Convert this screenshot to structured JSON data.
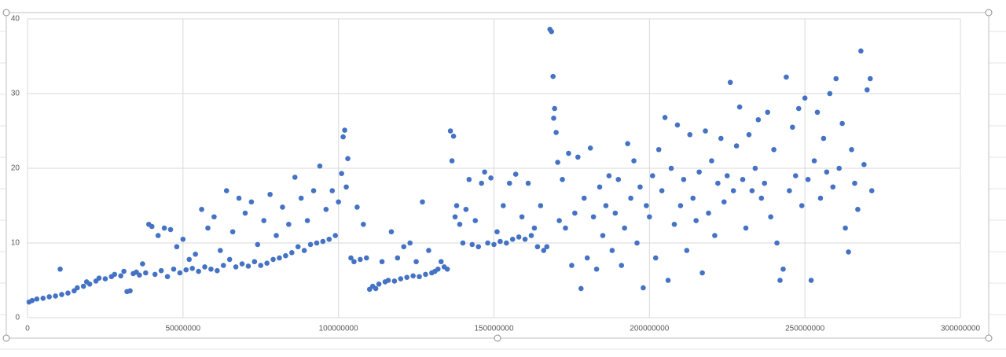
{
  "chart_data": {
    "type": "scatter",
    "color": "#4472c4",
    "grid": true,
    "xlim": [
      0,
      300000000
    ],
    "xticks": [
      0,
      50000000,
      100000000,
      150000000,
      200000000,
      250000000,
      300000000
    ],
    "ylim": [
      0,
      40
    ],
    "yticks": [
      0,
      10,
      20,
      30,
      40
    ],
    "x": [
      500000,
      1500000,
      3000000,
      5000000,
      7000000,
      9000000,
      10500000,
      11000000,
      13000000,
      15000000,
      16000000,
      18000000,
      19000000,
      20000000,
      22000000,
      23000000,
      25000000,
      27000000,
      28000000,
      30000000,
      31000000,
      32000000,
      33000000,
      34000000,
      35000000,
      36000000,
      37000000,
      38000000,
      39000000,
      40000000,
      41000000,
      42000000,
      43000000,
      44000000,
      45000000,
      46000000,
      47000000,
      48000000,
      49000000,
      50000000,
      51000000,
      52000000,
      53000000,
      54000000,
      55000000,
      56000000,
      57000000,
      58000000,
      59000000,
      60000000,
      61000000,
      62000000,
      63000000,
      64000000,
      65000000,
      66000000,
      67000000,
      68000000,
      69000000,
      70000000,
      71000000,
      72000000,
      73000000,
      74000000,
      75000000,
      76000000,
      77000000,
      78000000,
      79000000,
      80000000,
      81000000,
      82000000,
      83000000,
      84000000,
      85000000,
      86000000,
      87000000,
      88000000,
      89000000,
      90000000,
      91000000,
      92000000,
      93000000,
      94000000,
      95000000,
      96000000,
      97000000,
      98000000,
      99000000,
      100000000,
      101000000,
      101500000,
      102000000,
      102500000,
      103000000,
      104000000,
      105000000,
      106000000,
      107000000,
      108000000,
      109000000,
      110000000,
      111000000,
      112000000,
      113000000,
      114000000,
      115000000,
      116000000,
      117000000,
      118000000,
      119000000,
      120000000,
      121000000,
      122000000,
      123000000,
      124000000,
      125000000,
      126000000,
      127000000,
      128000000,
      129000000,
      130000000,
      131000000,
      132000000,
      133000000,
      134000000,
      135000000,
      136000000,
      136500000,
      137000000,
      137500000,
      138000000,
      139000000,
      140000000,
      141000000,
      142000000,
      143000000,
      144000000,
      145000000,
      146000000,
      147000000,
      148000000,
      149000000,
      150000000,
      151000000,
      152000000,
      153000000,
      154000000,
      155000000,
      156000000,
      157000000,
      158000000,
      159000000,
      160000000,
      161000000,
      162000000,
      163000000,
      164000000,
      165000000,
      166000000,
      167000000,
      168000000,
      168500000,
      169000000,
      169500000,
      169200000,
      170000000,
      170500000,
      171000000,
      172000000,
      173000000,
      174000000,
      175000000,
      176000000,
      177000000,
      178000000,
      179000000,
      180000000,
      181000000,
      182000000,
      183000000,
      184000000,
      185000000,
      186000000,
      187000000,
      188000000,
      189000000,
      190000000,
      191000000,
      192000000,
      193000000,
      194000000,
      195000000,
      196000000,
      197000000,
      198000000,
      199000000,
      200000000,
      201000000,
      202000000,
      203000000,
      204000000,
      205000000,
      206000000,
      207000000,
      208000000,
      209000000,
      210000000,
      211000000,
      212000000,
      213000000,
      214000000,
      215000000,
      216000000,
      217000000,
      218000000,
      219000000,
      220000000,
      221000000,
      222000000,
      223000000,
      224000000,
      225000000,
      226000000,
      227000000,
      228000000,
      229000000,
      230000000,
      231000000,
      232000000,
      233000000,
      234000000,
      235000000,
      236000000,
      237000000,
      238000000,
      239000000,
      240000000,
      241000000,
      242000000,
      243000000,
      244000000,
      245000000,
      246000000,
      247000000,
      248000000,
      249000000,
      250000000,
      251000000,
      252000000,
      253000000,
      254000000,
      255000000,
      256000000,
      257000000,
      258000000,
      259000000,
      260000000,
      261000000,
      262000000,
      263000000,
      264000000,
      265000000,
      266000000,
      267000000,
      268000000,
      269000000,
      270000000,
      271000000,
      271500000
    ],
    "values": [
      2.1,
      2.3,
      2.5,
      2.6,
      2.8,
      2.9,
      6.5,
      3.1,
      3.3,
      3.6,
      4.0,
      4.2,
      4.8,
      4.5,
      4.9,
      5.3,
      5.2,
      5.5,
      5.8,
      5.6,
      6.2,
      3.5,
      3.6,
      5.9,
      6.1,
      5.7,
      7.2,
      6.0,
      12.5,
      12.2,
      5.8,
      11.0,
      6.3,
      12.0,
      5.5,
      11.8,
      6.5,
      9.5,
      6.0,
      10.5,
      6.4,
      7.8,
      6.6,
      8.5,
      6.2,
      14.5,
      6.8,
      12.0,
      6.5,
      13.5,
      6.3,
      9.0,
      7.0,
      17.0,
      7.8,
      11.5,
      6.8,
      16.0,
      7.2,
      14.0,
      6.9,
      15.5,
      7.5,
      9.8,
      7.0,
      13.0,
      7.3,
      16.5,
      7.8,
      11.0,
      8.0,
      14.8,
      8.3,
      12.5,
      8.7,
      18.8,
      9.5,
      16.0,
      9.0,
      13.0,
      9.8,
      17.0,
      10.0,
      20.3,
      10.2,
      14.5,
      10.5,
      17.0,
      11.0,
      15.5,
      19.3,
      24.2,
      25.1,
      17.5,
      21.3,
      8.0,
      7.5,
      14.8,
      7.8,
      12.5,
      8.0,
      3.8,
      4.2,
      3.9,
      4.5,
      7.5,
      4.8,
      5.0,
      11.5,
      4.9,
      8.0,
      5.2,
      9.5,
      5.4,
      10.0,
      5.6,
      7.5,
      5.5,
      15.5,
      5.8,
      9.0,
      6.0,
      6.2,
      6.5,
      7.5,
      6.8,
      6.5,
      25.0,
      21.0,
      24.3,
      13.5,
      15.0,
      12.5,
      10.0,
      14.5,
      18.5,
      9.8,
      13.0,
      9.5,
      18.0,
      19.5,
      10.0,
      18.7,
      9.8,
      11.5,
      10.2,
      15.0,
      10.0,
      18.0,
      10.5,
      19.2,
      10.8,
      13.5,
      10.5,
      18.0,
      11.0,
      12.0,
      9.5,
      15.0,
      9.0,
      9.5,
      38.6,
      38.3,
      32.3,
      28.0,
      26.7,
      24.8,
      20.8,
      13.0,
      18.5,
      12.0,
      22.0,
      7.0,
      14.0,
      21.5,
      3.9,
      16.0,
      8.0,
      22.7,
      13.5,
      6.5,
      17.5,
      11.0,
      15.0,
      19.0,
      9.0,
      14.0,
      18.5,
      7.0,
      12.0,
      23.3,
      16.0,
      21.0,
      10.0,
      17.5,
      4.0,
      15.0,
      13.5,
      19.0,
      8.0,
      22.5,
      17.0,
      26.8,
      5.0,
      20.0,
      12.5,
      25.8,
      15.0,
      18.5,
      9.0,
      24.5,
      16.0,
      13.0,
      19.5,
      6.0,
      25.0,
      14.0,
      21.0,
      11.0,
      18.0,
      24.0,
      15.5,
      19.0,
      31.5,
      17.0,
      23.0,
      28.2,
      18.5,
      12.0,
      24.5,
      17.0,
      20.0,
      26.5,
      16.0,
      18.0,
      27.5,
      13.5,
      22.5,
      10.0,
      5.0,
      6.5,
      32.2,
      17.0,
      25.5,
      19.0,
      28.0,
      15.0,
      29.4,
      18.5,
      5.0,
      21.0,
      27.5,
      16.0,
      24.0,
      19.5,
      30.0,
      17.5,
      32.0,
      20.0,
      26.0,
      12.0,
      8.8,
      22.5,
      18.0,
      14.5,
      35.7,
      20.5,
      30.5,
      32.0,
      17.0
    ]
  }
}
